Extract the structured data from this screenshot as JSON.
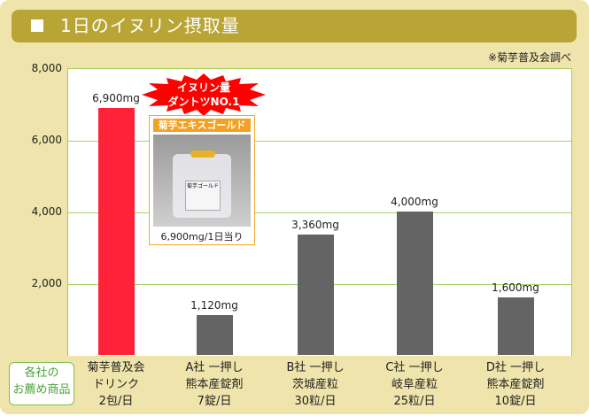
{
  "header": {
    "title": "1日のイヌリン摂取量"
  },
  "source": "※菊芋普及会調べ",
  "recommend_label": [
    "各社の",
    "お薦め商品"
  ],
  "burst": [
    "イヌリン量",
    "ダントツNO.1"
  ],
  "product": {
    "name": "菊芋エキスゴールド",
    "package_label": "菊芋ゴールド",
    "caption": "6,900mg/1日当り"
  },
  "colors": {
    "highlight": "#ff2238",
    "bar": "#646464",
    "grid": "#a8d26a",
    "header": "#b8a535",
    "background": "#efe4ab"
  },
  "chart_data": {
    "type": "bar",
    "ylim": [
      0,
      8000
    ],
    "yticks": [
      "8,000",
      "6,000",
      "4,000",
      "2,000"
    ],
    "ytick_values": [
      8000,
      6000,
      4000,
      2000
    ],
    "grid": true,
    "categories": [
      [
        "菊芋普及会",
        "ドリンク",
        "2包/日"
      ],
      [
        "A社 一押し",
        "熊本産錠剤",
        "7錠/日"
      ],
      [
        "B社 一押し",
        "茨城産粒",
        "30粒/日"
      ],
      [
        "C社 一押し",
        "岐阜産粒",
        "25粒/日"
      ],
      [
        "D社 一押し",
        "熊本産錠剤",
        "10錠/日"
      ]
    ],
    "values": [
      6900,
      1120,
      3360,
      4000,
      1600
    ],
    "data_labels": [
      "6,900mg",
      "1,120mg",
      "3,360mg",
      "4,000mg",
      "1,600mg"
    ],
    "highlight_index": 0
  }
}
